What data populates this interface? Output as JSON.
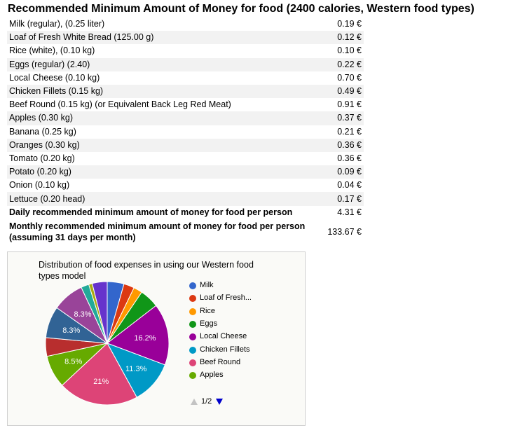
{
  "title": "Recommended Minimum Amount of Money for food (2400 calories, Western food types)",
  "items": [
    {
      "label": "Milk (regular), (0.25 liter)",
      "price": "0.19 €"
    },
    {
      "label": "Loaf of Fresh White Bread (125.00 g)",
      "price": "0.12 €"
    },
    {
      "label": "Rice (white), (0.10 kg)",
      "price": "0.10 €"
    },
    {
      "label": "Eggs (regular) (2.40)",
      "price": "0.22 €"
    },
    {
      "label": "Local Cheese (0.10 kg)",
      "price": "0.70 €"
    },
    {
      "label": "Chicken Fillets (0.15 kg)",
      "price": "0.49 €"
    },
    {
      "label": "Beef Round (0.15 kg) (or Equivalent Back Leg Red Meat)",
      "price": "0.91 €"
    },
    {
      "label": "Apples (0.30 kg)",
      "price": "0.37 €"
    },
    {
      "label": "Banana (0.25 kg)",
      "price": "0.21 €"
    },
    {
      "label": "Oranges (0.30 kg)",
      "price": "0.36 €"
    },
    {
      "label": "Tomato (0.20 kg)",
      "price": "0.36 €"
    },
    {
      "label": "Potato (0.20 kg)",
      "price": "0.09 €"
    },
    {
      "label": "Onion (0.10 kg)",
      "price": "0.04 €"
    },
    {
      "label": "Lettuce (0.20 head)",
      "price": "0.17 €"
    }
  ],
  "totals": {
    "daily_label": "Daily recommended minimum amount of money for food per person",
    "daily_value": "4.31 €",
    "monthly_label": "Monthly recommended minimum amount of money for food per person (assuming 31 days per month)",
    "monthly_value": "133.67 €"
  },
  "pager": {
    "text": "1/2"
  },
  "chart_data": {
    "type": "pie",
    "title": "Distribution of food expenses in using our Western food types model",
    "slices": [
      {
        "name": "Milk",
        "value": 0.19,
        "color": "#3366cc"
      },
      {
        "name": "Loaf of Fresh White Bread",
        "value": 0.12,
        "color": "#dc3912"
      },
      {
        "name": "Rice",
        "value": 0.1,
        "color": "#ff9900"
      },
      {
        "name": "Eggs",
        "value": 0.22,
        "color": "#109618"
      },
      {
        "name": "Local Cheese",
        "value": 0.7,
        "color": "#990099",
        "label": "16.2%"
      },
      {
        "name": "Chicken Fillets",
        "value": 0.49,
        "color": "#0099c6",
        "label": "11.3%"
      },
      {
        "name": "Beef Round",
        "value": 0.91,
        "color": "#dd4477",
        "label": "21%"
      },
      {
        "name": "Apples",
        "value": 0.37,
        "color": "#66aa00",
        "label": "8.5%"
      },
      {
        "name": "Banana",
        "value": 0.21,
        "color": "#b82e2e"
      },
      {
        "name": "Oranges",
        "value": 0.36,
        "color": "#316395",
        "label": "8.3%"
      },
      {
        "name": "Tomato",
        "value": 0.36,
        "color": "#994499",
        "label": "8.3%"
      },
      {
        "name": "Potato",
        "value": 0.09,
        "color": "#22aa99"
      },
      {
        "name": "Onion",
        "value": 0.04,
        "color": "#aaaa11"
      },
      {
        "name": "Lettuce",
        "value": 0.17,
        "color": "#6633cc"
      }
    ],
    "legend": {
      "position": "right",
      "items": [
        {
          "label": "Milk",
          "color": "#3366cc"
        },
        {
          "label": "Loaf of Fresh...",
          "color": "#dc3912"
        },
        {
          "label": "Rice",
          "color": "#ff9900"
        },
        {
          "label": "Eggs",
          "color": "#109618"
        },
        {
          "label": "Local Cheese",
          "color": "#990099"
        },
        {
          "label": "Chicken Fillets",
          "color": "#0099c6"
        },
        {
          "label": "Beef Round",
          "color": "#dd4477"
        },
        {
          "label": "Apples",
          "color": "#66aa00"
        }
      ]
    }
  }
}
